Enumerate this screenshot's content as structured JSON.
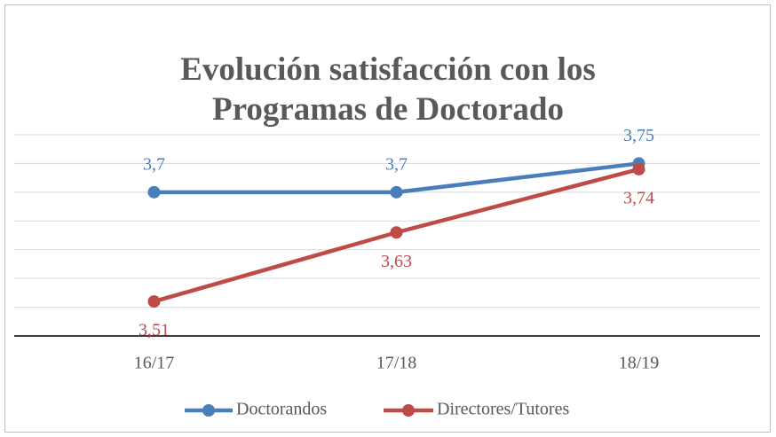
{
  "chart_data": {
    "type": "line",
    "title": "Evolución satisfacción con los Programas de Doctorado",
    "categories": [
      "16/17",
      "17/18",
      "18/19"
    ],
    "series": [
      {
        "name": "Doctorandos",
        "color": "#4a7ebb",
        "values": [
          3.7,
          3.7,
          3.75
        ],
        "value_labels": [
          "3,7",
          "3,7",
          "3,75"
        ]
      },
      {
        "name": "Directores/Tutores",
        "color": "#be4b48",
        "values": [
          3.51,
          3.63,
          3.74
        ],
        "value_labels": [
          "3,51",
          "3,63",
          "3,74"
        ]
      }
    ],
    "ylim": [
      3.45,
      3.8
    ],
    "yticks": [
      3.45,
      3.5,
      3.55,
      3.6,
      3.65,
      3.7,
      3.75,
      3.8
    ],
    "grid": true,
    "legend": "bottom"
  }
}
